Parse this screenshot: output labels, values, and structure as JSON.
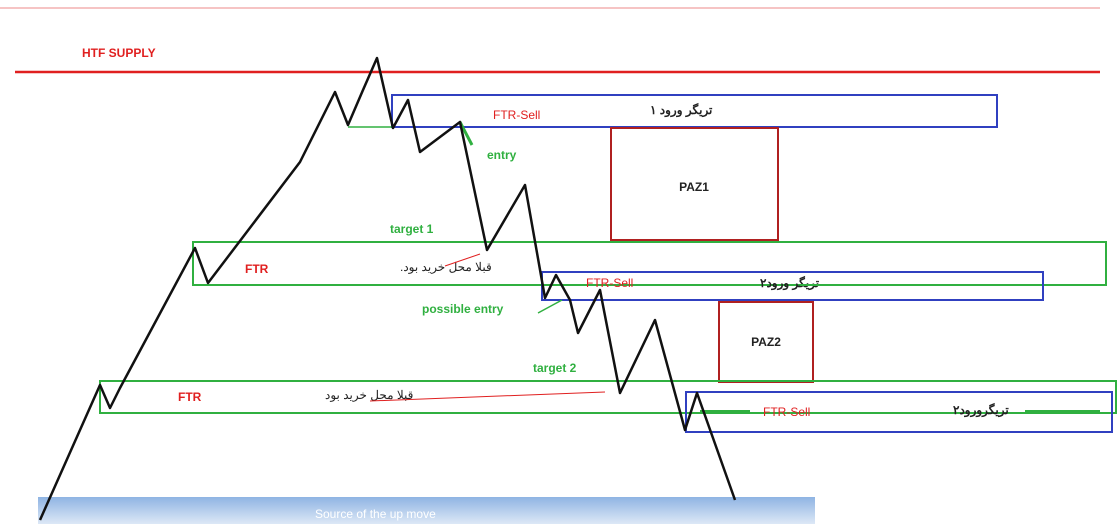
{
  "htf_supply": "HTF SUPPLY",
  "trigger_1": {
    "label": "تریگر ورود ۱",
    "ftr": "FTR-Sell"
  },
  "entry": "entry",
  "paz1": "PAZ1",
  "target_1": "target 1",
  "ftr_zone_1": {
    "ftr": "FTR",
    "note": "قبلا محل خرید بود."
  },
  "trigger_2": {
    "label": "تریگر ورود۲",
    "ftr": "FTR-Sell"
  },
  "possible_entry": "possible entry",
  "paz2": "PAZ2",
  "target_2": "target 2",
  "ftr_zone_2": {
    "ftr": "FTR",
    "note": "قبلا محل خرید بود"
  },
  "trigger_3": {
    "label": "تریگرورود۲",
    "ftr": "FTR-Sell"
  },
  "source": "Source of the up move"
}
